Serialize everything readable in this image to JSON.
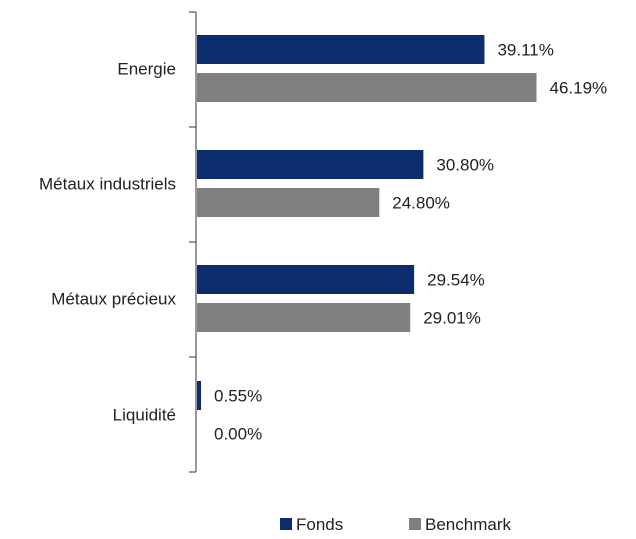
{
  "chart_data": {
    "type": "bar",
    "orientation": "horizontal",
    "categories": [
      "Energie",
      "Métaux industriels",
      "Métaux précieux",
      "Liquidité"
    ],
    "series": [
      {
        "name": "Fonds",
        "color": "#0b2d6e",
        "values": [
          39.11,
          30.8,
          29.54,
          0.55
        ],
        "labels": [
          "39.11%",
          "30.80%",
          "29.54%",
          "0.55%"
        ]
      },
      {
        "name": "Benchmark",
        "color": "#7f7f7f",
        "values": [
          46.19,
          24.8,
          29.01,
          0.0
        ],
        "labels": [
          "46.19%",
          "24.80%",
          "29.01%",
          "0.00%"
        ]
      }
    ],
    "xlim": [
      0,
      50
    ],
    "grid": false,
    "legend": "bottom-center"
  }
}
